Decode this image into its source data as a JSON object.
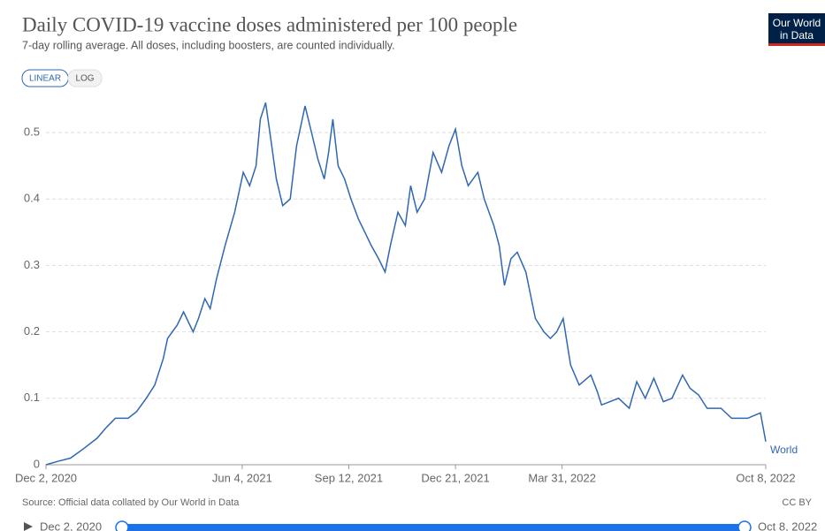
{
  "chart_data": {
    "type": "line",
    "title": "Daily COVID-19 vaccine doses administered per 100 people",
    "subtitle": "7-day rolling average. All doses, including boosters, are counted individually.",
    "scale_options": [
      "LINEAR",
      "LOG"
    ],
    "logo": [
      "Our World",
      "in Data"
    ],
    "source": "Source: Official data collated by Our World in Data",
    "license": "CC BY",
    "x": [
      "2020-12-02",
      "2020-12-13",
      "2020-12-25",
      "2021-01-07",
      "2021-01-19",
      "2021-01-27",
      "2021-02-05",
      "2021-02-17",
      "2021-02-25",
      "2021-03-06",
      "2021-03-14",
      "2021-03-22",
      "2021-03-26",
      "2021-04-04",
      "2021-04-10",
      "2021-04-19",
      "2021-04-24",
      "2021-04-30",
      "2021-05-05",
      "2021-05-11",
      "2021-05-19",
      "2021-05-28",
      "2021-06-05",
      "2021-06-11",
      "2021-06-17",
      "2021-06-21",
      "2021-06-26",
      "2021-06-30",
      "2021-07-06",
      "2021-07-12",
      "2021-07-19",
      "2021-07-25",
      "2021-08-02",
      "2021-08-08",
      "2021-08-14",
      "2021-08-20",
      "2021-08-24",
      "2021-08-28",
      "2021-09-02",
      "2021-09-08",
      "2021-09-14",
      "2021-09-21",
      "2021-09-27",
      "2021-10-03",
      "2021-10-10",
      "2021-10-16",
      "2021-10-21",
      "2021-10-28",
      "2021-11-04",
      "2021-11-09",
      "2021-11-15",
      "2021-11-22",
      "2021-11-30",
      "2021-12-08",
      "2021-12-15",
      "2021-12-21",
      "2021-12-27",
      "2022-01-02",
      "2022-01-11",
      "2022-01-17",
      "2022-01-26",
      "2022-01-31",
      "2022-02-05",
      "2022-02-11",
      "2022-02-17",
      "2022-02-25",
      "2022-03-06",
      "2022-03-14",
      "2022-03-20",
      "2022-03-26",
      "2022-04-01",
      "2022-04-08",
      "2022-04-16",
      "2022-04-27",
      "2022-05-03",
      "2022-05-07",
      "2022-05-15",
      "2022-05-23",
      "2022-06-02",
      "2022-06-09",
      "2022-06-17",
      "2022-06-25",
      "2022-07-04",
      "2022-07-12",
      "2022-07-22",
      "2022-07-29",
      "2022-08-06",
      "2022-08-14",
      "2022-08-27",
      "2022-09-06",
      "2022-09-21",
      "2022-10-03",
      "2022-10-08"
    ],
    "series": [
      {
        "name": "World",
        "color": "#3167b1",
        "values": [
          0,
          0.005,
          0.01,
          0.025,
          0.04,
          0.055,
          0.07,
          0.07,
          0.08,
          0.1,
          0.12,
          0.16,
          0.19,
          0.21,
          0.23,
          0.2,
          0.22,
          0.25,
          0.235,
          0.28,
          0.33,
          0.38,
          0.44,
          0.42,
          0.45,
          0.52,
          0.545,
          0.5,
          0.43,
          0.39,
          0.4,
          0.48,
          0.54,
          0.5,
          0.46,
          0.43,
          0.47,
          0.52,
          0.45,
          0.43,
          0.4,
          0.37,
          0.35,
          0.33,
          0.31,
          0.29,
          0.33,
          0.38,
          0.36,
          0.42,
          0.38,
          0.4,
          0.47,
          0.44,
          0.48,
          0.505,
          0.45,
          0.42,
          0.44,
          0.4,
          0.36,
          0.33,
          0.27,
          0.31,
          0.32,
          0.29,
          0.22,
          0.2,
          0.19,
          0.2,
          0.22,
          0.15,
          0.12,
          0.135,
          0.11,
          0.09,
          0.095,
          0.1,
          0.085,
          0.125,
          0.1,
          0.13,
          0.095,
          0.1,
          0.135,
          0.115,
          0.105,
          0.085,
          0.085,
          0.07,
          0.07,
          0.078,
          0.035
        ]
      }
    ],
    "xlim": [
      "2020-12-02",
      "2022-10-08"
    ],
    "xticks": [
      {
        "value": "2020-12-02",
        "label": "Dec 2, 2020"
      },
      {
        "value": "2021-06-04",
        "label": "Jun 4, 2021"
      },
      {
        "value": "2021-09-12",
        "label": "Sep 12, 2021"
      },
      {
        "value": "2021-12-21",
        "label": "Dec 21, 2021"
      },
      {
        "value": "2022-03-31",
        "label": "Mar 31, 2022"
      },
      {
        "value": "2022-10-08",
        "label": "Oct 8, 2022"
      }
    ],
    "ylim": [
      0,
      0.55
    ],
    "yticks": [
      0,
      0.1,
      0.2,
      0.3,
      0.4,
      0.5
    ],
    "grid": true
  }
}
